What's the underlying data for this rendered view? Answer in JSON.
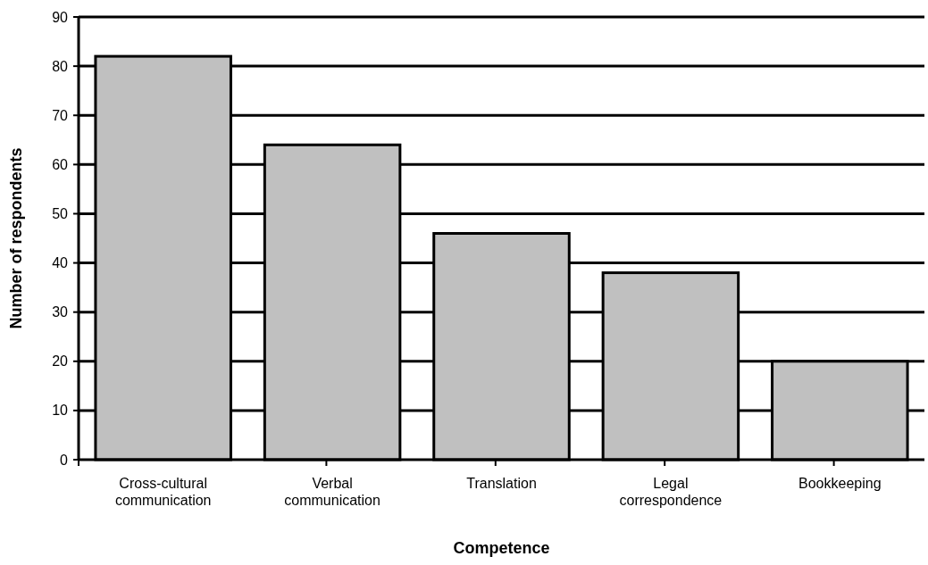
{
  "chart_data": {
    "type": "bar",
    "xlabel": "Competence",
    "ylabel": "Number of respondents",
    "categories": [
      "Cross-cultural communication",
      "Verbal communication",
      "Translation",
      "Legal correspondence",
      "Bookkeeping"
    ],
    "values": [
      82,
      64,
      46,
      38,
      20
    ],
    "color": "#c0c0c0",
    "ylim": [
      0,
      90
    ],
    "yticks": [
      0,
      10,
      20,
      30,
      40,
      50,
      60,
      70,
      80,
      90
    ],
    "grid": "y"
  }
}
